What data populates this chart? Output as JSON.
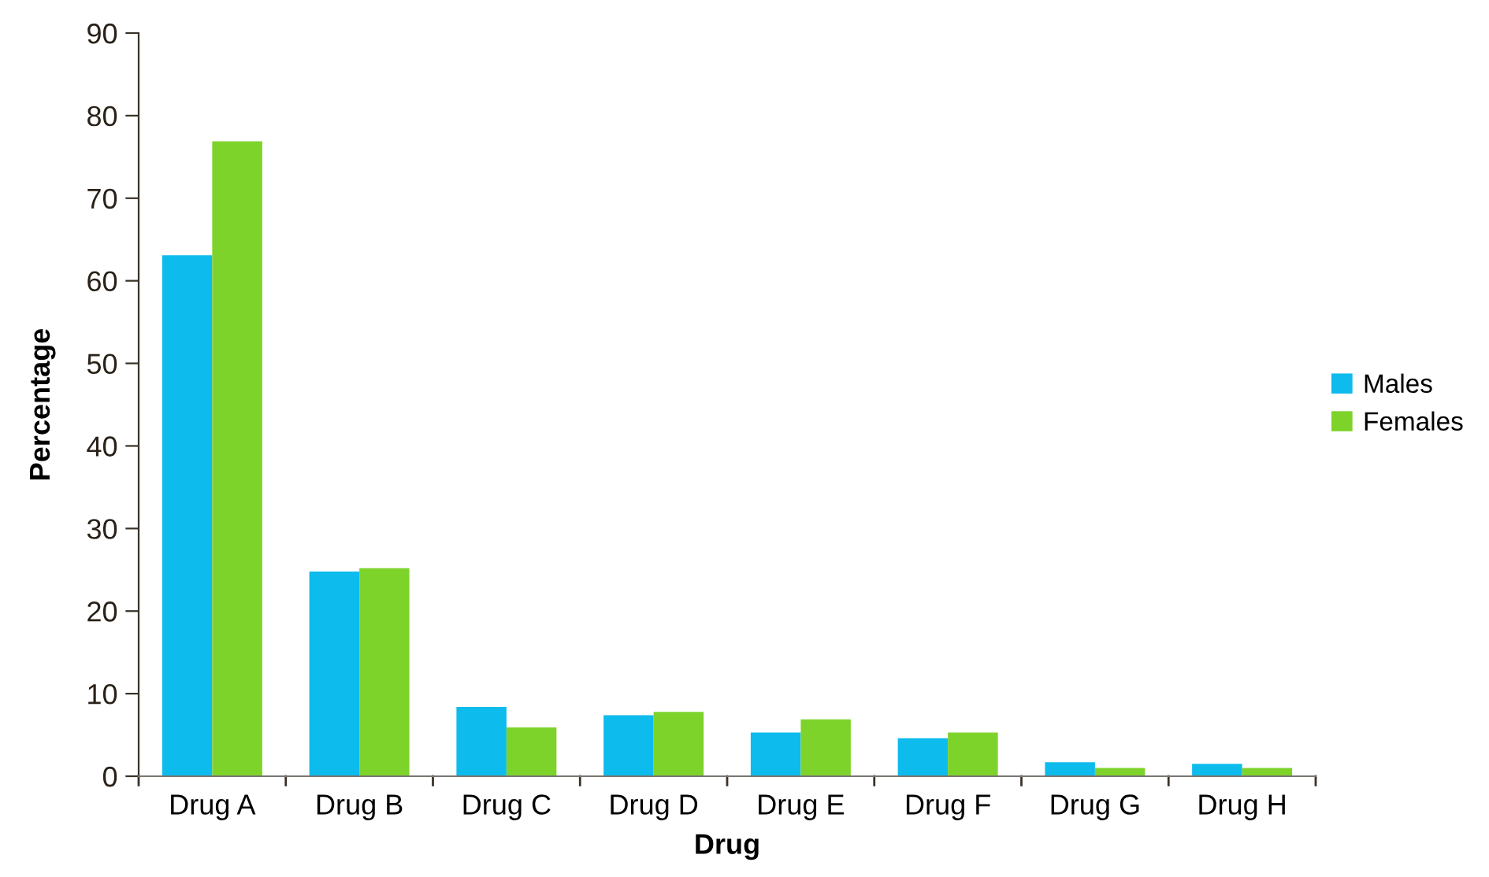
{
  "chart_data": {
    "type": "bar",
    "xlabel": "Drug",
    "ylabel": "Percentage",
    "categories": [
      "Drug A",
      "Drug B",
      "Drug C",
      "Drug D",
      "Drug E",
      "Drug F",
      "Drug G",
      "Drug H"
    ],
    "series": [
      {
        "name": "Males",
        "color": "#0dbbec",
        "values": [
          63.1,
          24.8,
          8.4,
          7.4,
          5.3,
          4.6,
          1.7,
          1.5
        ]
      },
      {
        "name": "Females",
        "color": "#7ed32b",
        "values": [
          76.9,
          25.2,
          5.9,
          7.8,
          6.9,
          5.3,
          1.0,
          1.0
        ]
      }
    ],
    "ylim": [
      0,
      90
    ],
    "yticks": [
      0,
      10,
      20,
      30,
      40,
      50,
      60,
      70,
      80,
      90
    ],
    "grid": false,
    "legend": "right"
  }
}
